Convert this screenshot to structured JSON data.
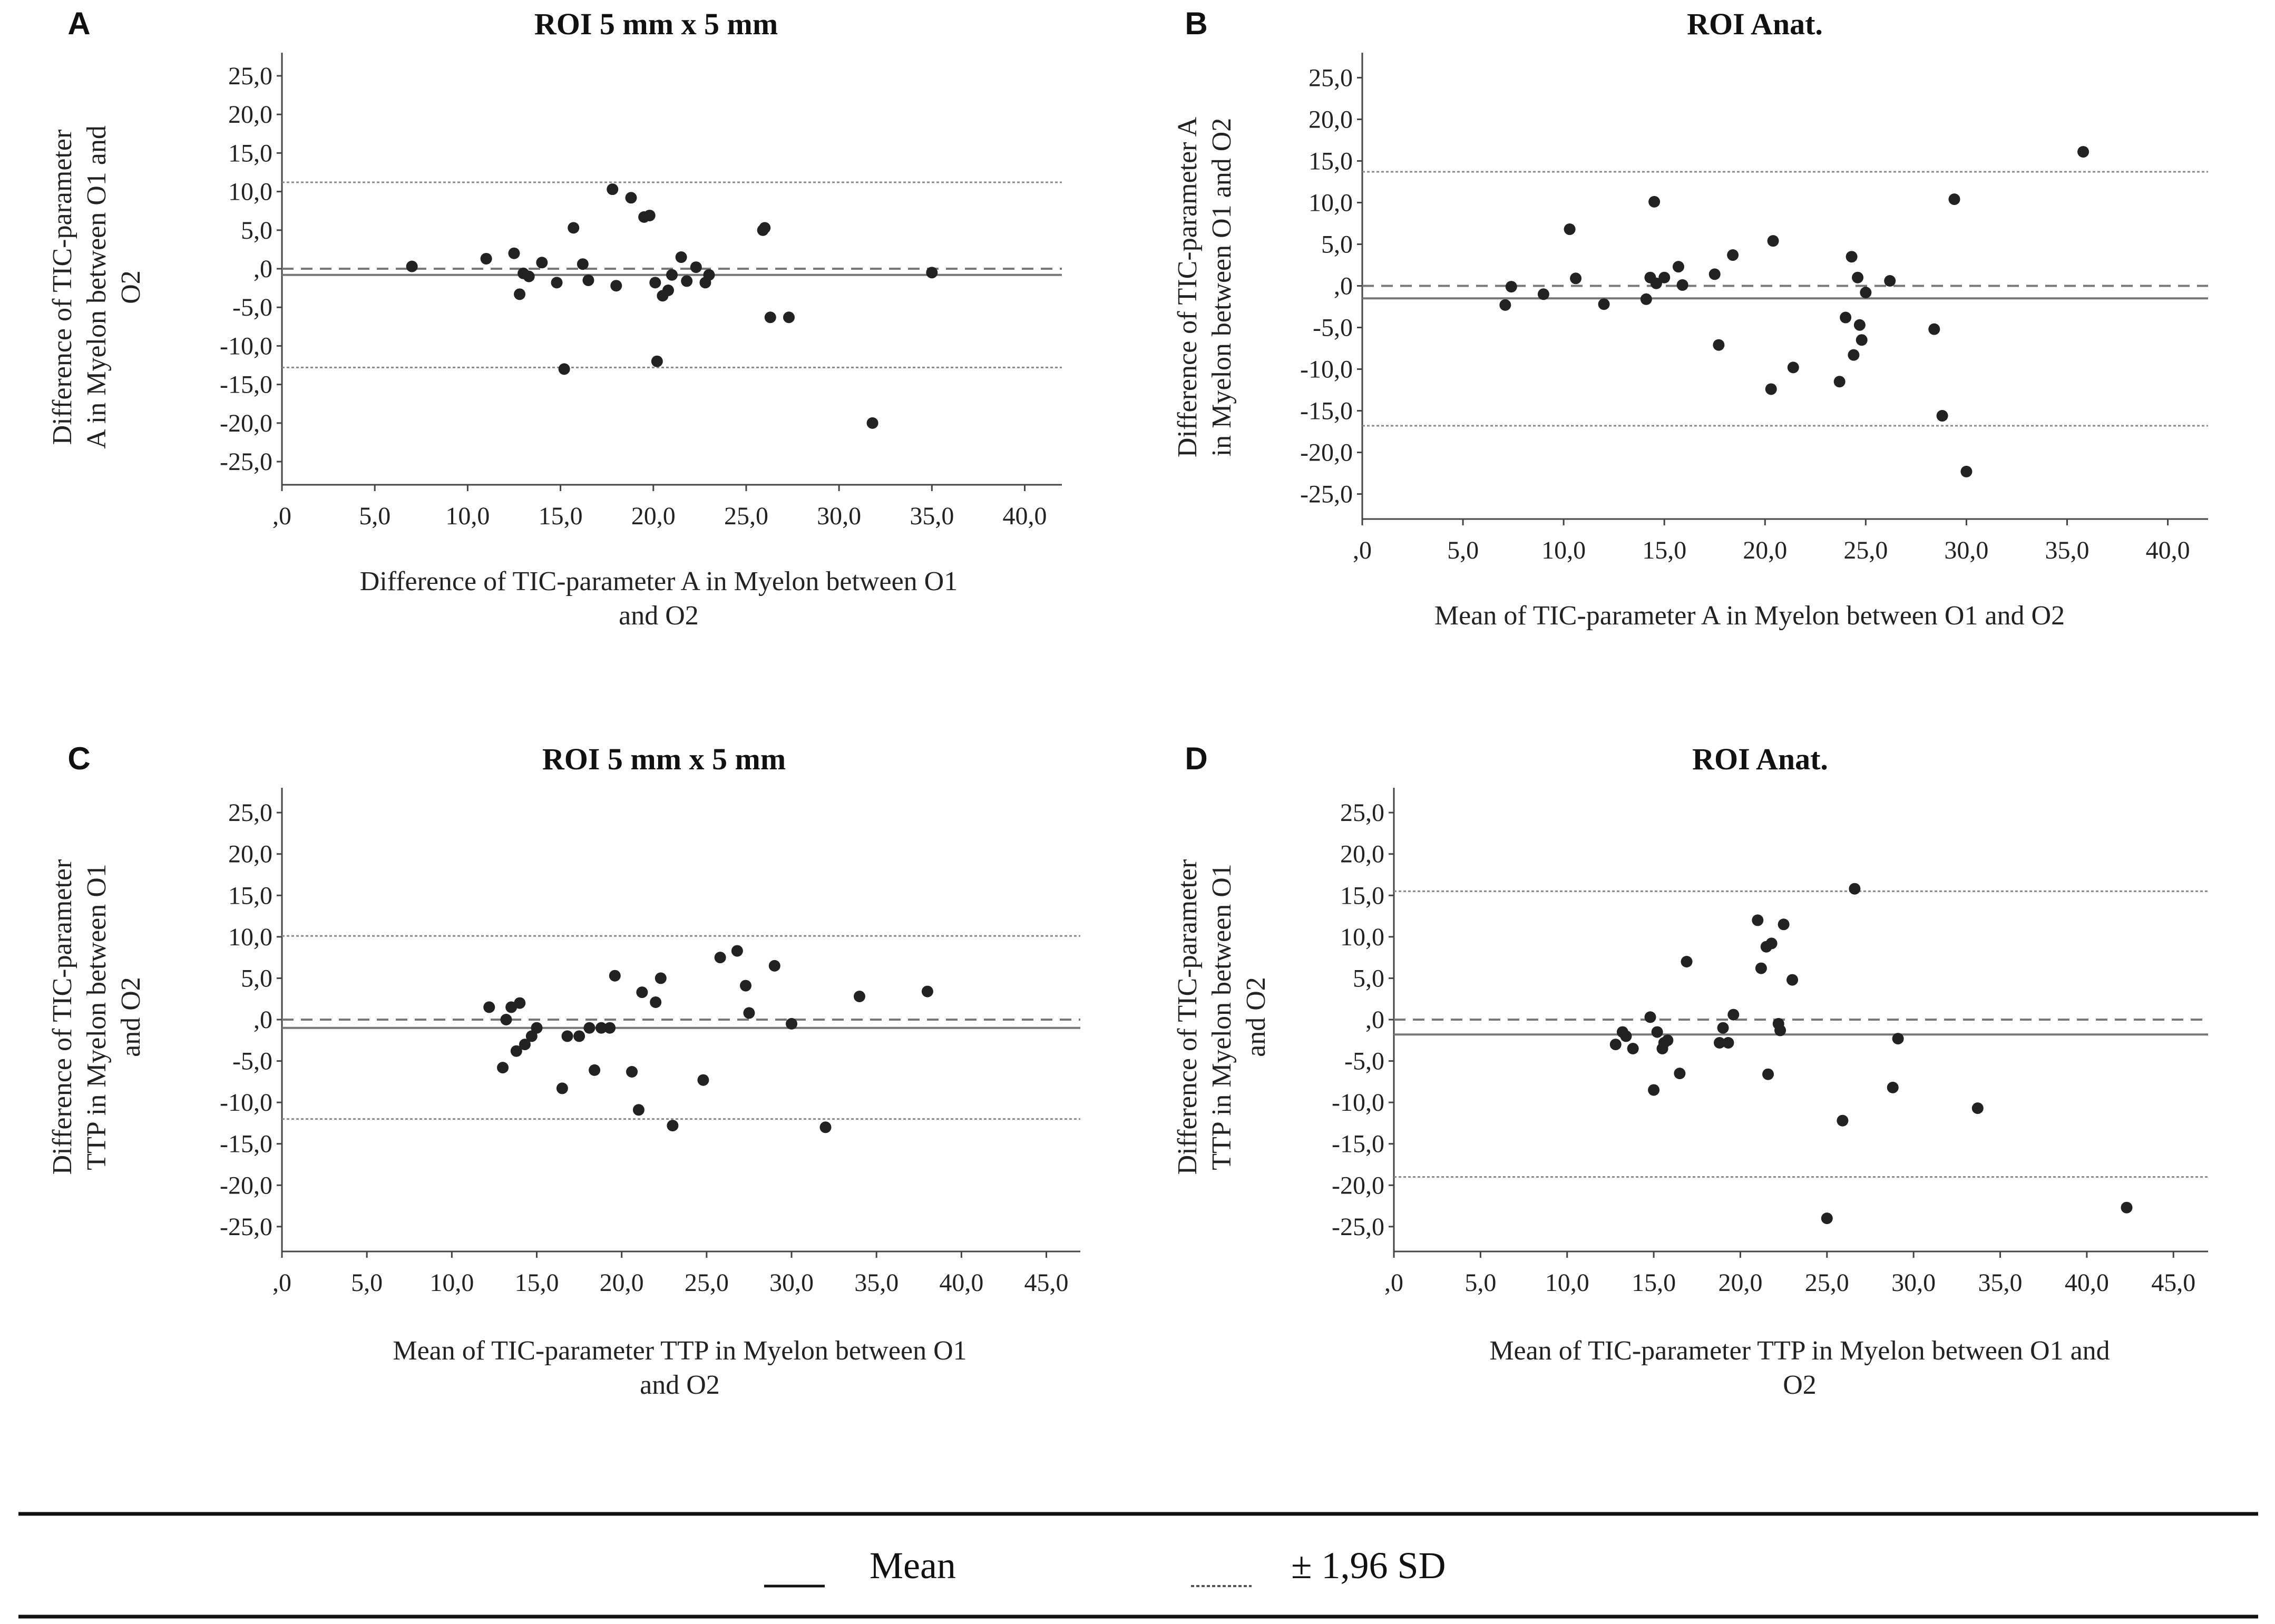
{
  "legend": {
    "mean_label": "Mean",
    "sd_label": "± 1,96 SD"
  },
  "chart_data": [
    {
      "type": "scatter",
      "letter": "A",
      "title": "ROI 5 mm x 5 mm",
      "xlabel_lines": [
        "Difference of TIC-parameter A in Myelon between O1",
        "and O2"
      ],
      "ylabel_lines": [
        "Difference of TIC-parameter",
        "A in Myelon between O1 and",
        "O2"
      ],
      "xlim": [
        0,
        42
      ],
      "ylim": [
        -28,
        28
      ],
      "xticks": [
        0,
        5,
        10,
        15,
        20,
        25,
        30,
        35,
        40
      ],
      "xtick_labels": [
        ",0",
        "5,0",
        "10,0",
        "15,0",
        "20,0",
        "25,0",
        "30,0",
        "35,0",
        "40,0"
      ],
      "yticks": [
        25,
        20,
        15,
        10,
        5,
        0,
        -5,
        -10,
        -15,
        -20,
        -25
      ],
      "ytick_labels": [
        "25,0",
        "20,0",
        "15,0",
        "10,0",
        "5,0",
        ",0",
        "-5,0",
        "-10,0",
        "-15,0",
        "-20,0",
        "-25,0"
      ],
      "mean": -0.8,
      "upper_loa": 11.2,
      "lower_loa": -12.8,
      "points": [
        [
          7,
          0.3
        ],
        [
          11,
          1.3
        ],
        [
          12.5,
          2
        ],
        [
          12.8,
          -3.3
        ],
        [
          13,
          -0.6
        ],
        [
          13.3,
          -1
        ],
        [
          14,
          0.8
        ],
        [
          14.8,
          -1.8
        ],
        [
          15.2,
          -13
        ],
        [
          15.7,
          5.3
        ],
        [
          16.2,
          0.6
        ],
        [
          16.5,
          -1.5
        ],
        [
          17.8,
          10.3
        ],
        [
          18,
          -2.2
        ],
        [
          18.8,
          9.2
        ],
        [
          19.5,
          6.7
        ],
        [
          19.8,
          6.9
        ],
        [
          20.1,
          -1.8
        ],
        [
          20.2,
          -12
        ],
        [
          20.5,
          -3.5
        ],
        [
          20.8,
          -2.8
        ],
        [
          21,
          -0.8
        ],
        [
          21.5,
          1.5
        ],
        [
          21.8,
          -1.6
        ],
        [
          22.3,
          0.2
        ],
        [
          22.8,
          -1.8
        ],
        [
          23,
          -0.8
        ],
        [
          25.9,
          5
        ],
        [
          26,
          5.3
        ],
        [
          26.3,
          -6.3
        ],
        [
          27.3,
          -6.3
        ],
        [
          31.8,
          -20
        ],
        [
          35,
          -0.5
        ]
      ]
    },
    {
      "type": "scatter",
      "letter": "B",
      "title": "ROI Anat.",
      "xlabel_lines": [
        "Mean of TIC-parameter A in Myelon between O1 and O2"
      ],
      "ylabel_lines": [
        "Difference of TIC-parameter A",
        "in Myelon between O1 and O2"
      ],
      "xlim": [
        0,
        42
      ],
      "ylim": [
        -28,
        28
      ],
      "xticks": [
        0,
        5,
        10,
        15,
        20,
        25,
        30,
        35,
        40
      ],
      "xtick_labels": [
        ",0",
        "5,0",
        "10,0",
        "15,0",
        "20,0",
        "25,0",
        "30,0",
        "35,0",
        "40,0"
      ],
      "yticks": [
        25,
        20,
        15,
        10,
        5,
        0,
        -5,
        -10,
        -15,
        -20,
        -25
      ],
      "ytick_labels": [
        "25,0",
        "20,0",
        "15,0",
        "10,0",
        "5,0",
        ",0",
        "-5,0",
        "-10,0",
        "-15,0",
        "-20,0",
        "-25,0"
      ],
      "mean": -1.5,
      "upper_loa": 13.7,
      "lower_loa": -16.8,
      "points": [
        [
          7.1,
          -2.3
        ],
        [
          7.4,
          -0.1
        ],
        [
          9,
          -1
        ],
        [
          10.3,
          6.8
        ],
        [
          10.6,
          0.9
        ],
        [
          12,
          -2.2
        ],
        [
          14.1,
          -1.6
        ],
        [
          14.3,
          1
        ],
        [
          14.5,
          10.1
        ],
        [
          14.6,
          0.3
        ],
        [
          15,
          1
        ],
        [
          15.7,
          2.3
        ],
        [
          15.9,
          0.1
        ],
        [
          17.5,
          1.4
        ],
        [
          17.7,
          -7.1
        ],
        [
          18.4,
          3.7
        ],
        [
          20.3,
          -12.4
        ],
        [
          20.4,
          5.4
        ],
        [
          21.4,
          -9.8
        ],
        [
          23.7,
          -11.5
        ],
        [
          24,
          -3.8
        ],
        [
          24.3,
          3.5
        ],
        [
          24.4,
          -8.3
        ],
        [
          24.6,
          1
        ],
        [
          24.7,
          -4.7
        ],
        [
          24.8,
          -6.5
        ],
        [
          25,
          -0.8
        ],
        [
          26.2,
          0.6
        ],
        [
          28.4,
          -5.2
        ],
        [
          28.8,
          -15.6
        ],
        [
          29.4,
          10.4
        ],
        [
          30,
          -22.3
        ],
        [
          35.8,
          16.1
        ]
      ]
    },
    {
      "type": "scatter",
      "letter": "C",
      "title": "ROI 5 mm x 5 mm",
      "xlabel_lines": [
        "Mean of TIC-parameter TTP in Myelon between O1",
        "and O2"
      ],
      "ylabel_lines": [
        "Difference of TIC-parameter",
        "TTP in Myelon between O1",
        "and O2"
      ],
      "xlim": [
        0,
        47
      ],
      "ylim": [
        -28,
        28
      ],
      "xticks": [
        0,
        5,
        10,
        15,
        20,
        25,
        30,
        35,
        40,
        45
      ],
      "xtick_labels": [
        ",0",
        "5,0",
        "10,0",
        "15,0",
        "20,0",
        "25,0",
        "30,0",
        "35,0",
        "40,0",
        "45,0"
      ],
      "yticks": [
        25,
        20,
        15,
        10,
        5,
        0,
        -5,
        -10,
        -15,
        -20,
        -25
      ],
      "ytick_labels": [
        "25,0",
        "20,0",
        "15,0",
        "10,0",
        "5,0",
        ",0",
        "-5,0",
        "-10,0",
        "-15,0",
        "-20,0",
        "-25,0"
      ],
      "mean": -1,
      "upper_loa": 10.1,
      "lower_loa": -12,
      "points": [
        [
          12.2,
          1.5
        ],
        [
          13,
          -5.8
        ],
        [
          13.2,
          0
        ],
        [
          13.5,
          1.5
        ],
        [
          13.8,
          -3.8
        ],
        [
          14,
          2
        ],
        [
          14.3,
          -3
        ],
        [
          14.7,
          -2
        ],
        [
          15,
          -1
        ],
        [
          16.5,
          -8.3
        ],
        [
          16.8,
          -2
        ],
        [
          17.5,
          -2
        ],
        [
          18.1,
          -1
        ],
        [
          18.4,
          -6.1
        ],
        [
          18.8,
          -1
        ],
        [
          19.3,
          -1
        ],
        [
          19.6,
          5.3
        ],
        [
          20.6,
          -6.3
        ],
        [
          21,
          -10.9
        ],
        [
          21.2,
          3.3
        ],
        [
          22,
          2.1
        ],
        [
          22.3,
          5
        ],
        [
          23,
          -12.8
        ],
        [
          24.8,
          -7.3
        ],
        [
          25.8,
          7.5
        ],
        [
          26.8,
          8.3
        ],
        [
          27.3,
          4.1
        ],
        [
          27.5,
          0.8
        ],
        [
          29,
          6.5
        ],
        [
          30,
          -0.5
        ],
        [
          32,
          -13
        ],
        [
          34,
          2.8
        ],
        [
          38,
          3.4
        ]
      ]
    },
    {
      "type": "scatter",
      "letter": "D",
      "title": "ROI Anat.",
      "xlabel_lines": [
        "Mean of TIC-parameter TTP in Myelon between O1 and",
        "O2"
      ],
      "ylabel_lines": [
        "Difference of TIC-parameter",
        "TTP in Myelon between O1",
        "and O2"
      ],
      "xlim": [
        0,
        47
      ],
      "ylim": [
        -28,
        28
      ],
      "xticks": [
        0,
        5,
        10,
        15,
        20,
        25,
        30,
        35,
        40,
        45
      ],
      "xtick_labels": [
        ",0",
        "5,0",
        "10,0",
        "15,0",
        "20,0",
        "25,0",
        "30,0",
        "35,0",
        "40,0",
        "45,0"
      ],
      "yticks": [
        25,
        20,
        15,
        10,
        5,
        0,
        -5,
        -10,
        -15,
        -20,
        -25
      ],
      "ytick_labels": [
        "25,0",
        "20,0",
        "15,0",
        "10,0",
        "5,0",
        ",0",
        "-5,0",
        "-10,0",
        "-15,0",
        "-20,0",
        "-25,0"
      ],
      "mean": -1.8,
      "upper_loa": 15.5,
      "lower_loa": -19,
      "points": [
        [
          12.8,
          -3
        ],
        [
          13.2,
          -1.5
        ],
        [
          13.4,
          -2
        ],
        [
          13.8,
          -3.5
        ],
        [
          14.8,
          0.3
        ],
        [
          15,
          -8.5
        ],
        [
          15.2,
          -1.5
        ],
        [
          15.5,
          -3.5
        ],
        [
          15.6,
          -2.8
        ],
        [
          15.8,
          -2.5
        ],
        [
          16.5,
          -6.5
        ],
        [
          16.9,
          7
        ],
        [
          18.8,
          -2.8
        ],
        [
          19,
          -1
        ],
        [
          19.3,
          -2.8
        ],
        [
          19.6,
          0.6
        ],
        [
          21,
          12
        ],
        [
          21.2,
          6.2
        ],
        [
          21.5,
          8.8
        ],
        [
          21.6,
          -6.6
        ],
        [
          21.8,
          9.2
        ],
        [
          22.2,
          -0.5
        ],
        [
          22.3,
          -1.3
        ],
        [
          22.5,
          11.5
        ],
        [
          23,
          4.8
        ],
        [
          25,
          -24
        ],
        [
          25.9,
          -12.2
        ],
        [
          26.6,
          15.8
        ],
        [
          28.8,
          -8.2
        ],
        [
          29.1,
          -2.3
        ],
        [
          33.7,
          -10.7
        ],
        [
          42.3,
          -22.7
        ]
      ]
    }
  ]
}
